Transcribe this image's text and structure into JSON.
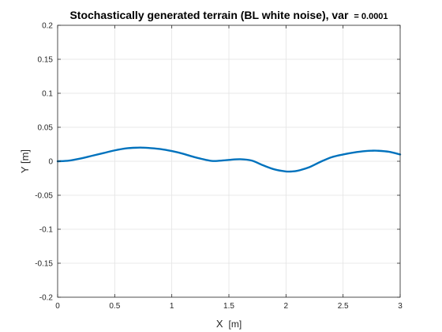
{
  "chart_data": {
    "type": "line",
    "title": "Stochastically generated terrain (BL white noise), var",
    "title_suffix": "= 0.0001",
    "xlabel": "X",
    "xlabel_unit": "[m]",
    "ylabel": "Y [m]",
    "xlim": [
      0,
      3
    ],
    "ylim": [
      -0.2,
      0.2
    ],
    "xticks": [
      0,
      0.5,
      1,
      1.5,
      2,
      2.5,
      3
    ],
    "xtick_labels": [
      "0",
      "0.5",
      "1",
      "1.5",
      "2",
      "2.5",
      "3"
    ],
    "yticks": [
      -0.2,
      -0.15,
      -0.1,
      -0.05,
      0,
      0.05,
      0.1,
      0.15,
      0.2
    ],
    "ytick_labels": [
      "-0.2",
      "-0.15",
      "-0.1",
      "-0.05",
      "0",
      "0.05",
      "0.1",
      "0.15",
      "0.2"
    ],
    "grid": true,
    "line_color": "#0072BD",
    "series": [
      {
        "x": [
          0,
          0.1,
          0.2,
          0.3,
          0.4,
          0.5,
          0.6,
          0.7,
          0.75,
          0.8,
          0.9,
          1.0,
          1.1,
          1.2,
          1.3,
          1.35,
          1.4,
          1.5,
          1.6,
          1.7,
          1.8,
          1.9,
          2.0,
          2.05,
          2.1,
          2.2,
          2.3,
          2.4,
          2.5,
          2.6,
          2.7,
          2.75,
          2.8,
          2.9,
          3.0
        ],
        "y": [
          0.0,
          0.001,
          0.004,
          0.008,
          0.012,
          0.016,
          0.019,
          0.02,
          0.02,
          0.0195,
          0.018,
          0.015,
          0.011,
          0.006,
          0.002,
          0.0005,
          0.0005,
          0.002,
          0.003,
          0.001,
          -0.006,
          -0.012,
          -0.015,
          -0.015,
          -0.014,
          -0.009,
          -0.001,
          0.006,
          0.01,
          0.013,
          0.015,
          0.0155,
          0.0155,
          0.014,
          0.01
        ]
      }
    ]
  }
}
